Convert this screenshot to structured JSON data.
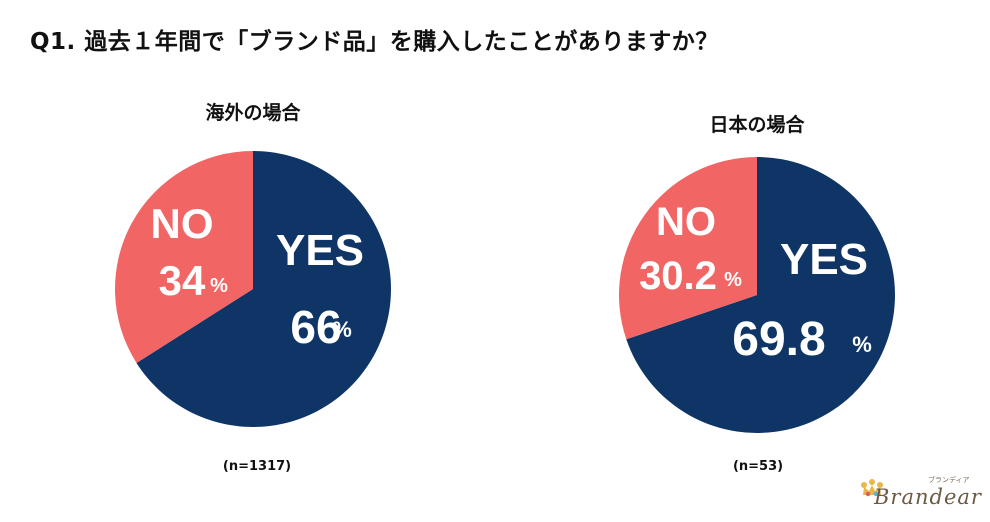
{
  "title": "Q1. 過去１年間で「ブランド品」を購入したことがありますか？",
  "colors": {
    "yes": "#0e3566",
    "no": "#f26565"
  },
  "chart_data": [
    {
      "type": "pie",
      "title": "海外の場合",
      "sample": "(n=1317)",
      "slices": [
        {
          "name": "YES",
          "value": 66,
          "value_label": "66",
          "unit": "%"
        },
        {
          "name": "NO",
          "value": 34,
          "value_label": "34",
          "unit": "%"
        }
      ]
    },
    {
      "type": "pie",
      "title": "日本の場合",
      "sample": "(n=53)",
      "slices": [
        {
          "name": "YES",
          "value": 69.8,
          "value_label": "69.8",
          "unit": "%"
        },
        {
          "name": "NO",
          "value": 30.2,
          "value_label": "30.2",
          "unit": "%"
        }
      ]
    }
  ],
  "logo": {
    "text": "Brandear",
    "kana": "ブランディア",
    "icon": "crown-icon"
  }
}
